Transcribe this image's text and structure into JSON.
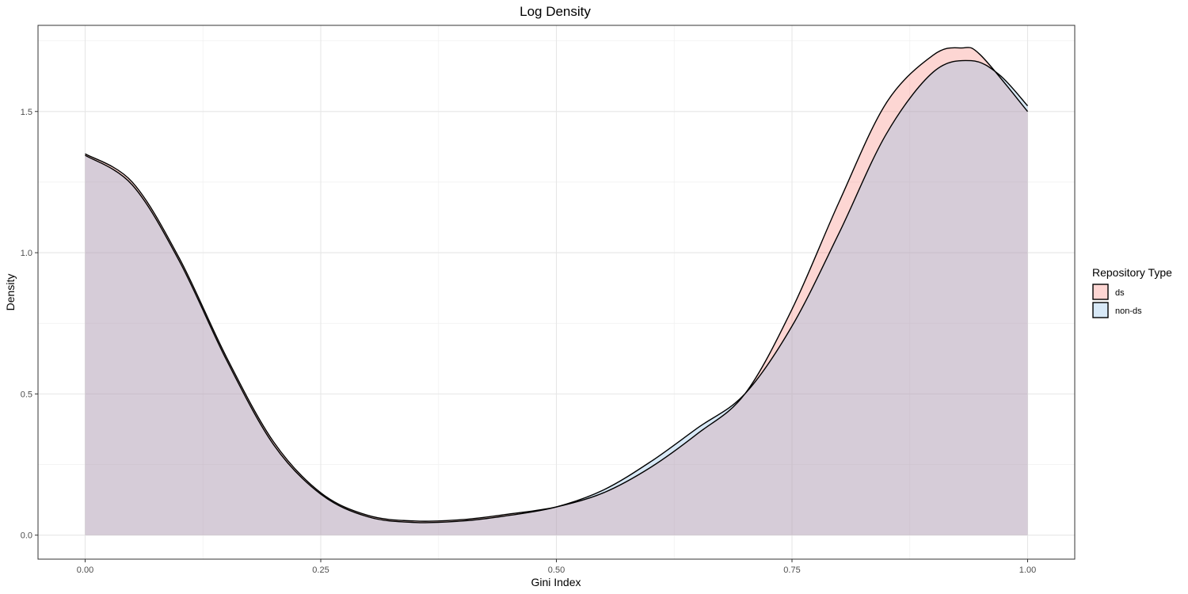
{
  "chart_data": {
    "type": "area",
    "title": "Log Density",
    "xlabel": "Gini Index",
    "ylabel": "Density",
    "xlim": [
      -0.05,
      1.05
    ],
    "ylim": [
      -0.085,
      1.805
    ],
    "x_ticks": [
      0.0,
      0.25,
      0.5,
      0.75,
      1.0
    ],
    "x_tick_labels": [
      "0.00",
      "0.25",
      "0.50",
      "0.75",
      "1.00"
    ],
    "y_ticks": [
      0.0,
      0.5,
      1.0,
      1.5
    ],
    "y_tick_labels": [
      "0.0",
      "0.5",
      "1.0",
      "1.5"
    ],
    "grid": true,
    "legend": {
      "title": "Repository Type",
      "position": "right"
    },
    "series": [
      {
        "name": "ds",
        "color": "#F8766D",
        "x": [
          0.0,
          0.05,
          0.1,
          0.15,
          0.2,
          0.25,
          0.3,
          0.35,
          0.4,
          0.45,
          0.5,
          0.55,
          0.6,
          0.65,
          0.7,
          0.75,
          0.8,
          0.85,
          0.9,
          0.93,
          0.95,
          1.0
        ],
        "y": [
          1.35,
          1.25,
          0.98,
          0.63,
          0.33,
          0.15,
          0.07,
          0.05,
          0.055,
          0.075,
          0.1,
          0.15,
          0.24,
          0.36,
          0.5,
          0.8,
          1.18,
          1.53,
          1.7,
          1.725,
          1.7,
          1.5
        ]
      },
      {
        "name": "non-ds",
        "color": "#7FB7E3",
        "x": [
          0.0,
          0.05,
          0.1,
          0.15,
          0.2,
          0.25,
          0.3,
          0.35,
          0.4,
          0.45,
          0.5,
          0.55,
          0.6,
          0.65,
          0.7,
          0.75,
          0.8,
          0.85,
          0.9,
          0.94,
          0.97,
          1.0
        ],
        "y": [
          1.345,
          1.24,
          0.97,
          0.62,
          0.32,
          0.145,
          0.065,
          0.045,
          0.05,
          0.07,
          0.1,
          0.16,
          0.26,
          0.38,
          0.5,
          0.74,
          1.07,
          1.42,
          1.64,
          1.68,
          1.63,
          1.52
        ]
      }
    ]
  }
}
